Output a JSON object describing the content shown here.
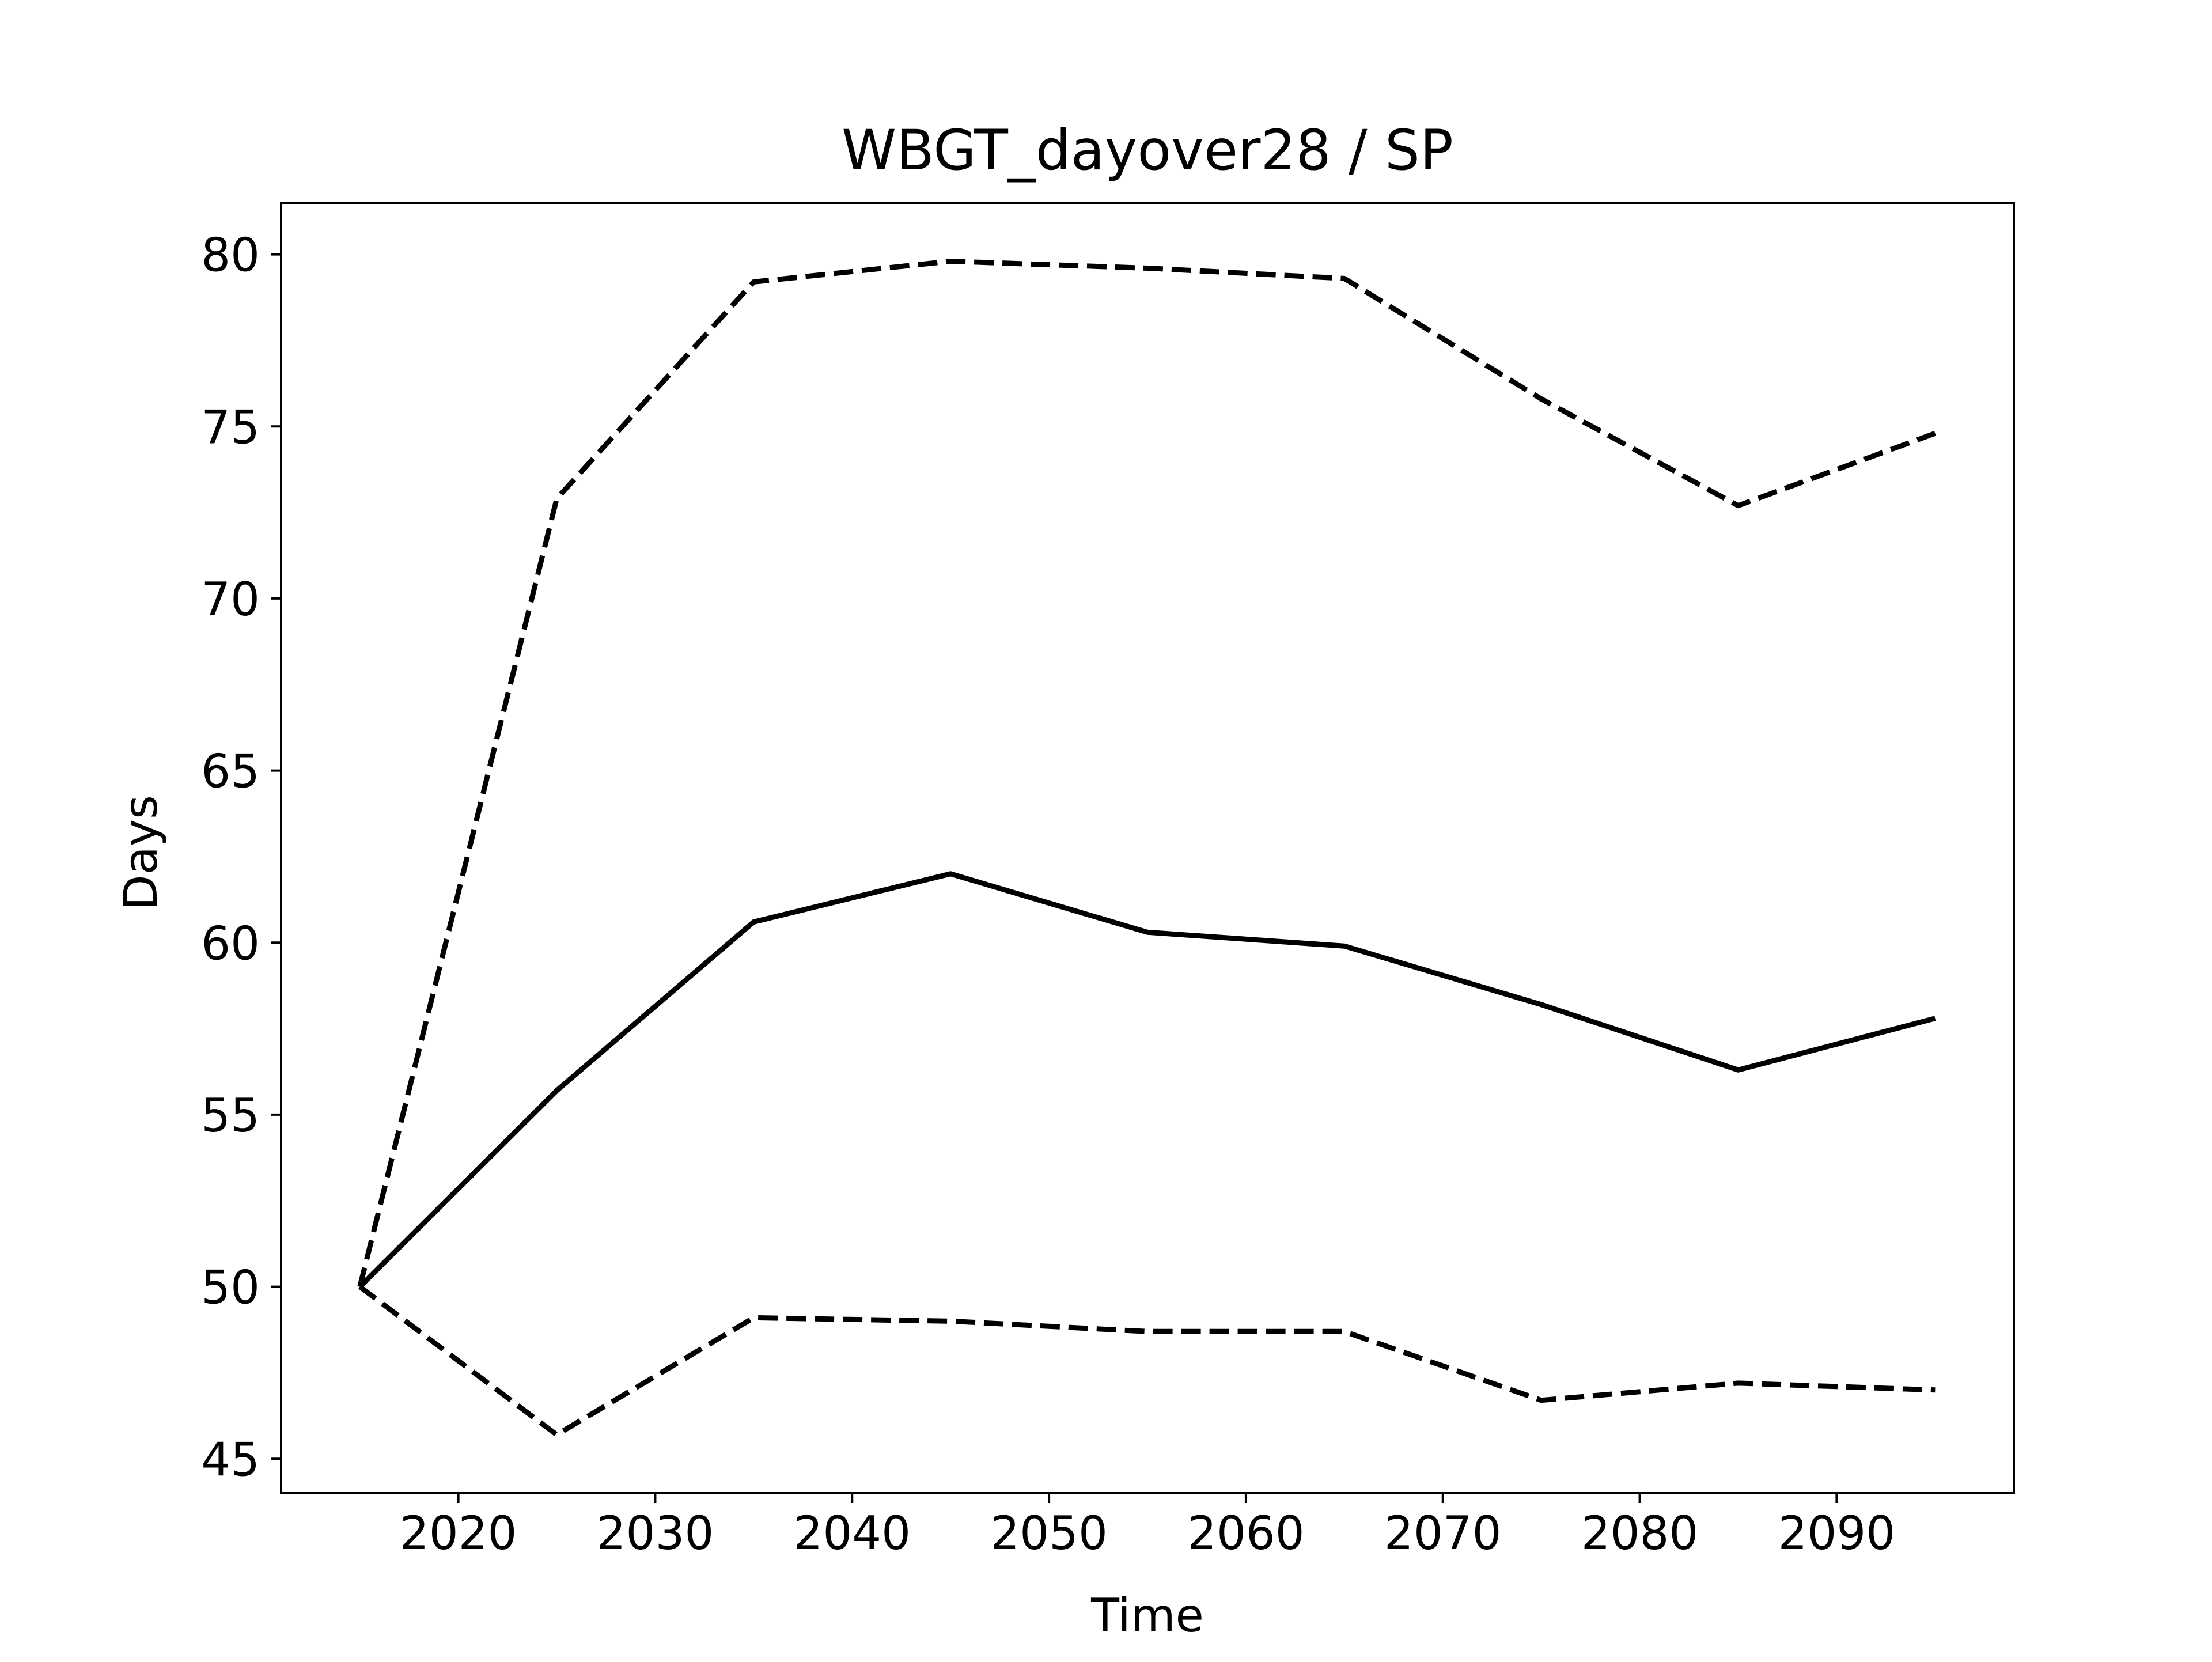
{
  "chart_data": {
    "type": "line",
    "title": "WBGT_dayover28 / SP",
    "xlabel": "Time",
    "ylabel": "Days",
    "xlim": [
      2011,
      2099
    ],
    "ylim": [
      44.0,
      81.5
    ],
    "xticks": [
      2020,
      2030,
      2040,
      2050,
      2060,
      2070,
      2080,
      2090
    ],
    "yticks": [
      45,
      50,
      55,
      60,
      65,
      70,
      75,
      80
    ],
    "x": [
      2015,
      2025,
      2035,
      2045,
      2055,
      2065,
      2075,
      2085,
      2095
    ],
    "grid": false,
    "legend": "none",
    "series": [
      {
        "values": [
          50.0,
          72.9,
          79.2,
          79.8,
          79.6,
          79.3,
          75.8,
          72.7,
          74.8
        ],
        "style": "dashed",
        "color": "#000000"
      },
      {
        "values": [
          50.0,
          55.7,
          60.6,
          62.0,
          60.3,
          59.9,
          58.2,
          56.3,
          57.8
        ],
        "style": "solid",
        "color": "#000000"
      },
      {
        "values": [
          50.0,
          45.7,
          49.1,
          49.0,
          48.7,
          48.7,
          46.7,
          47.2,
          47.0
        ],
        "style": "dashed",
        "color": "#000000"
      }
    ]
  }
}
